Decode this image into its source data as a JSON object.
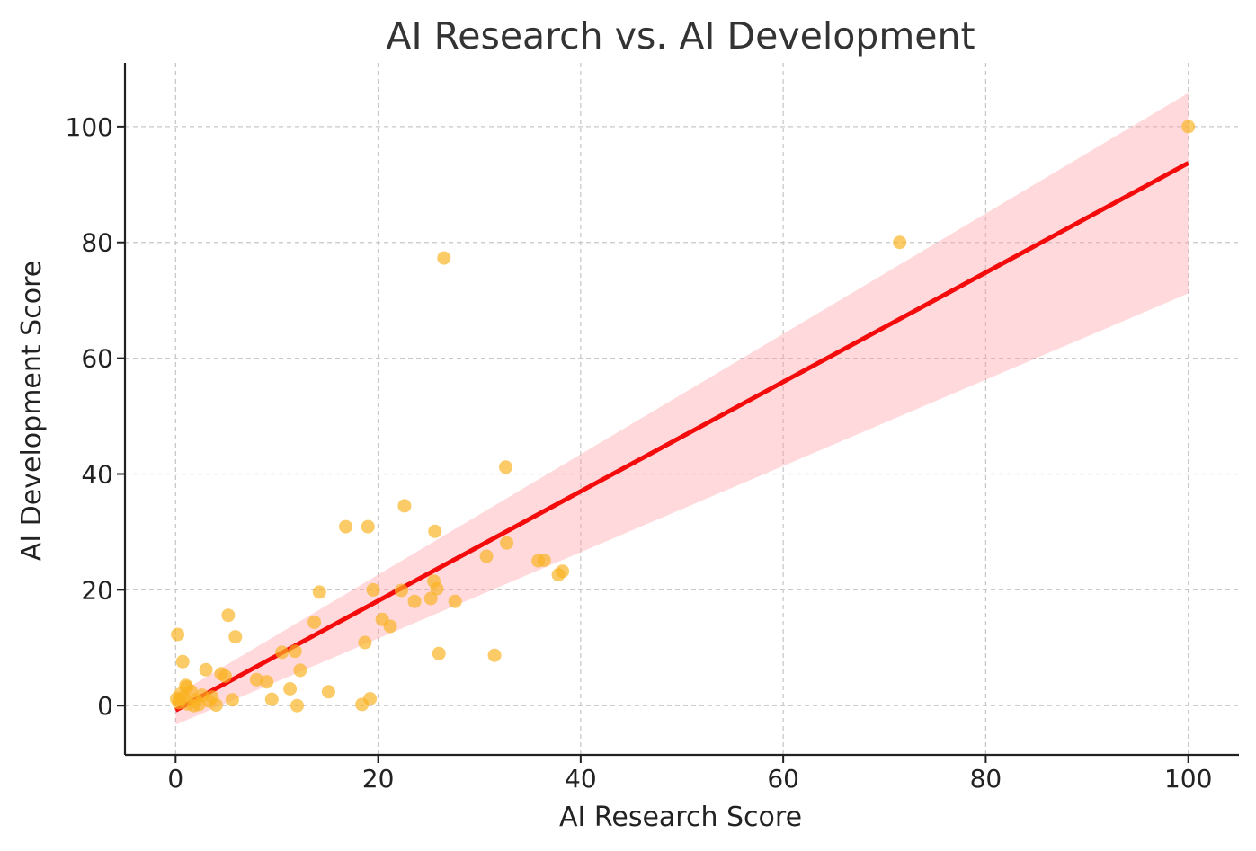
{
  "chart_data": {
    "type": "scatter",
    "title": "AI Research vs. AI Development",
    "xlabel": "AI Research Score",
    "ylabel": "AI Development Score",
    "xlim": [
      -5,
      105
    ],
    "ylim": [
      -8.5,
      111
    ],
    "x_ticks": [
      0,
      20,
      40,
      60,
      80,
      100
    ],
    "y_ticks": [
      0,
      20,
      40,
      60,
      80,
      100
    ],
    "x_tick_labels": [
      "0",
      "20",
      "40",
      "60",
      "80",
      "100"
    ],
    "y_tick_labels": [
      "0",
      "20",
      "40",
      "60",
      "80",
      "100"
    ],
    "grid": true,
    "legend": "none",
    "colors": {
      "points": "#f9b320",
      "fit_line": "#f40b0b",
      "confidence_band": "#ff9aa0",
      "title": "#333333",
      "grid": "#c8c8c8"
    },
    "series": [
      {
        "type": "scatter",
        "x": [
          0.1,
          0.3,
          0.5,
          0.8,
          1.0,
          1.2,
          1.5,
          1.8,
          2.0,
          2.3,
          2.6,
          3.0,
          3.3,
          3.6,
          4.0,
          0.2,
          0.7,
          1.1,
          0.4,
          4.5,
          4.9,
          5.2,
          5.6,
          5.9,
          8.0,
          9.0,
          9.5,
          10.5,
          11.3,
          11.8,
          12.0,
          12.3,
          13.7,
          14.2,
          15.1,
          16.8,
          18.4,
          18.7,
          19.0,
          19.2,
          19.5,
          20.4,
          21.2,
          22.3,
          22.6,
          23.6,
          25.2,
          25.5,
          25.6,
          25.8,
          26.0,
          26.5,
          27.6,
          30.7,
          31.5,
          32.6,
          32.7,
          35.8,
          36.4,
          37.8,
          38.2,
          71.5,
          100.0
        ],
        "y": [
          1.2,
          0.5,
          2.0,
          1.5,
          3.5,
          0.3,
          2.5,
          0.0,
          1.0,
          0.2,
          1.8,
          6.2,
          0.8,
          1.5,
          0.1,
          12.3,
          7.6,
          3.2,
          1.0,
          5.5,
          5.1,
          15.6,
          1.0,
          11.9,
          4.5,
          4.1,
          1.1,
          9.2,
          2.9,
          9.4,
          0.0,
          6.1,
          14.4,
          19.6,
          2.4,
          30.9,
          0.2,
          10.9,
          30.9,
          1.2,
          20.0,
          14.9,
          13.7,
          19.9,
          34.5,
          18.0,
          18.5,
          21.5,
          30.1,
          20.2,
          9.0,
          77.3,
          18.0,
          25.8,
          8.7,
          41.2,
          28.1,
          25.0,
          25.1,
          22.6,
          23.2,
          80.0,
          100.0
        ]
      },
      {
        "type": "line",
        "x": [
          0,
          100
        ],
        "y": [
          -0.8,
          93.7
        ]
      },
      {
        "type": "area",
        "x": [
          0,
          100
        ],
        "upper": [
          1.8,
          105.8
        ],
        "lower": [
          -3.3,
          71.2
        ]
      }
    ]
  }
}
